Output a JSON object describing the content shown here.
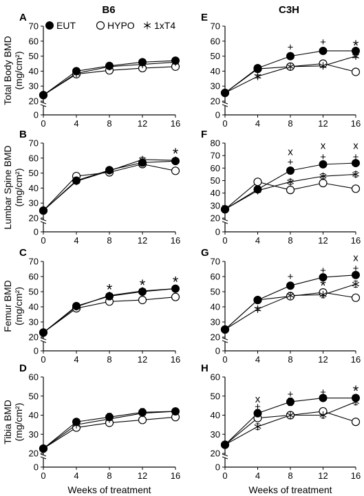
{
  "columns": [
    "B6",
    "C3H"
  ],
  "x_axis_title": "Weeks of treatment",
  "legend": [
    {
      "label": "EUT",
      "marker": "filled-circle"
    },
    {
      "label": "HYPO",
      "marker": "open-circle"
    },
    {
      "label": "1xT4",
      "marker": "asterisk"
    }
  ],
  "colors": {
    "line": "#000000",
    "background": "#ffffff"
  },
  "chart_data": [
    {
      "panel": "A",
      "strain": "B6",
      "type": "line",
      "ylabel_main": "Total Body BMD",
      "ylabel_unit": "(mg/cm²)",
      "xlabel": "",
      "x": [
        0,
        4,
        8,
        12,
        16
      ],
      "xticks": [
        0,
        4,
        8,
        12,
        16
      ],
      "ylim": [
        0,
        70
      ],
      "yticks": [
        0,
        20,
        30,
        40,
        50,
        60,
        70
      ],
      "axis_break": true,
      "series": [
        {
          "name": "EUT",
          "values": [
            24,
            40,
            43.5,
            46,
            47
          ],
          "err": [
            1,
            1,
            1,
            1,
            1
          ]
        },
        {
          "name": "HYPO",
          "values": [
            24,
            38,
            40.5,
            42,
            43
          ],
          "err": [
            1,
            1,
            1,
            1,
            1
          ]
        },
        {
          "name": "1xT4",
          "values": [
            24,
            38.5,
            43,
            44.5,
            46
          ],
          "err": [
            1,
            1,
            1,
            1,
            1
          ]
        }
      ],
      "annotations": []
    },
    {
      "panel": "B",
      "strain": "B6",
      "type": "line",
      "ylabel_main": "Lumbar Spine BMD",
      "ylabel_unit": "(mg/cm²)",
      "xlabel": "",
      "x": [
        0,
        4,
        8,
        12,
        16
      ],
      "xticks": [
        0,
        4,
        8,
        12,
        16
      ],
      "ylim": [
        0,
        70
      ],
      "yticks": [
        0,
        20,
        30,
        40,
        50,
        60,
        70
      ],
      "axis_break": true,
      "series": [
        {
          "name": "EUT",
          "values": [
            25,
            45,
            52,
            57,
            58
          ],
          "err": [
            1,
            1,
            1,
            1.5,
            1.5
          ]
        },
        {
          "name": "HYPO",
          "values": [
            25,
            48,
            50.5,
            56,
            51.5
          ],
          "err": [
            1,
            1,
            1,
            1.5,
            1.5
          ]
        },
        {
          "name": "1xT4",
          "values": [
            25,
            44.5,
            51.5,
            59,
            58.5
          ],
          "err": [
            1,
            1,
            1,
            1.5,
            1.5
          ]
        }
      ],
      "annotations": [
        {
          "x": 16,
          "y": 64,
          "text": "*"
        }
      ]
    },
    {
      "panel": "C",
      "strain": "B6",
      "type": "line",
      "ylabel_main": "Femur BMD",
      "ylabel_unit": "(mg/cm²)",
      "xlabel": "",
      "x": [
        0,
        4,
        8,
        12,
        16
      ],
      "xticks": [
        0,
        4,
        8,
        12,
        16
      ],
      "ylim": [
        0,
        70
      ],
      "yticks": [
        0,
        20,
        30,
        40,
        50,
        60,
        70
      ],
      "axis_break": true,
      "series": [
        {
          "name": "EUT",
          "values": [
            23,
            40.5,
            47,
            50,
            52
          ],
          "err": [
            1,
            1,
            1,
            1,
            1
          ]
        },
        {
          "name": "HYPO",
          "values": [
            23,
            39,
            43.5,
            44.5,
            46.5
          ],
          "err": [
            1,
            1,
            1,
            1,
            1
          ]
        },
        {
          "name": "1xT4",
          "values": [
            23,
            40,
            47.5,
            50.5,
            52
          ],
          "err": [
            1,
            1,
            1,
            1,
            1
          ]
        }
      ],
      "annotations": [
        {
          "x": 8,
          "y": 52.5,
          "text": "*"
        },
        {
          "x": 12,
          "y": 55.5,
          "text": "*"
        },
        {
          "x": 16,
          "y": 57.5,
          "text": "*"
        }
      ]
    },
    {
      "panel": "D",
      "strain": "B6",
      "type": "line",
      "ylabel_main": "Tibia BMD",
      "ylabel_unit": "(mg/cm²)",
      "xlabel": "Weeks of treatment",
      "x": [
        0,
        4,
        8,
        12,
        16
      ],
      "xticks": [
        0,
        4,
        8,
        12,
        16
      ],
      "ylim": [
        0,
        60
      ],
      "yticks": [
        0,
        20,
        30,
        40,
        50,
        60
      ],
      "axis_break": true,
      "series": [
        {
          "name": "EUT",
          "values": [
            22.5,
            36.5,
            39,
            41.5,
            42
          ],
          "err": [
            1,
            1,
            2,
            2,
            1.5
          ]
        },
        {
          "name": "HYPO",
          "values": [
            22.5,
            33.5,
            36,
            37.5,
            39
          ],
          "err": [
            1,
            1,
            1.5,
            1.5,
            1.5
          ]
        },
        {
          "name": "1xT4",
          "values": [
            22.5,
            35,
            38,
            41,
            42
          ],
          "err": [
            1,
            1,
            1.5,
            1.5,
            1.5
          ]
        }
      ],
      "annotations": []
    },
    {
      "panel": "E",
      "strain": "C3H",
      "type": "line",
      "ylabel_main": "",
      "ylabel_unit": "",
      "xlabel": "",
      "x": [
        0,
        4,
        8,
        12,
        16
      ],
      "xticks": [
        0,
        4,
        8,
        12,
        16
      ],
      "ylim": [
        0,
        70
      ],
      "yticks": [
        0,
        20,
        30,
        40,
        50,
        60,
        70
      ],
      "axis_break": true,
      "series": [
        {
          "name": "EUT",
          "values": [
            25.5,
            42,
            50,
            53.5,
            53.5
          ],
          "err": [
            1,
            1,
            1,
            1,
            1
          ]
        },
        {
          "name": "HYPO",
          "values": [
            25.5,
            41.5,
            43,
            45,
            39.5
          ],
          "err": [
            1,
            1,
            1,
            1,
            1
          ]
        },
        {
          "name": "1xT4",
          "values": [
            25.5,
            36.5,
            43,
            43.5,
            50
          ],
          "err": [
            1,
            1,
            1,
            1,
            1
          ]
        }
      ],
      "annotations": [
        {
          "x": 8,
          "y": 56,
          "text": "+"
        },
        {
          "x": 12,
          "y": 59.5,
          "text": "+"
        },
        {
          "x": 16,
          "y": 58,
          "text": "*"
        }
      ]
    },
    {
      "panel": "F",
      "strain": "C3H",
      "type": "line",
      "ylabel_main": "",
      "ylabel_unit": "",
      "xlabel": "",
      "x": [
        0,
        4,
        8,
        12,
        16
      ],
      "xticks": [
        0,
        4,
        8,
        12,
        16
      ],
      "ylim": [
        0,
        80
      ],
      "yticks": [
        0,
        20,
        30,
        40,
        50,
        60,
        70,
        80
      ],
      "axis_break": true,
      "series": [
        {
          "name": "EUT",
          "values": [
            27,
            43,
            58,
            63,
            64
          ],
          "err": [
            1,
            1,
            2,
            2,
            2
          ]
        },
        {
          "name": "HYPO",
          "values": [
            27,
            49,
            42.5,
            48,
            43.5
          ],
          "err": [
            1,
            1,
            2,
            2,
            2
          ]
        },
        {
          "name": "1xT4",
          "values": [
            27,
            42,
            49,
            53.5,
            55
          ],
          "err": [
            1,
            1,
            2,
            2,
            2
          ]
        }
      ],
      "annotations": [
        {
          "x": 8,
          "y": 73,
          "text": "x"
        },
        {
          "x": 8,
          "y": 65,
          "text": "+"
        },
        {
          "x": 12,
          "y": 78,
          "text": "x"
        },
        {
          "x": 12,
          "y": 69,
          "text": "+"
        },
        {
          "x": 16,
          "y": 78,
          "text": "x"
        },
        {
          "x": 16,
          "y": 69,
          "text": "+"
        }
      ]
    },
    {
      "panel": "G",
      "strain": "C3H",
      "type": "line",
      "ylabel_main": "",
      "ylabel_unit": "",
      "xlabel": "",
      "x": [
        0,
        4,
        8,
        12,
        16
      ],
      "xticks": [
        0,
        4,
        8,
        12,
        16
      ],
      "ylim": [
        0,
        70
      ],
      "yticks": [
        0,
        20,
        30,
        40,
        50,
        60,
        70
      ],
      "axis_break": true,
      "series": [
        {
          "name": "EUT",
          "values": [
            25,
            44.5,
            54,
            59.5,
            61
          ],
          "err": [
            1,
            1,
            2,
            2,
            2
          ]
        },
        {
          "name": "HYPO",
          "values": [
            25,
            44.5,
            47,
            49.5,
            46
          ],
          "err": [
            1,
            1,
            2,
            2,
            2
          ]
        },
        {
          "name": "1xT4",
          "values": [
            25,
            38.5,
            47.5,
            48,
            55
          ],
          "err": [
            1,
            1,
            2,
            2,
            2
          ]
        }
      ],
      "annotations": [
        {
          "x": 8,
          "y": 60,
          "text": "+"
        },
        {
          "x": 12,
          "y": 64,
          "text": "+"
        },
        {
          "x": 12,
          "y": 55,
          "text": "*"
        },
        {
          "x": 16,
          "y": 72.5,
          "text": "x"
        },
        {
          "x": 16,
          "y": 65.5,
          "text": "+"
        }
      ]
    },
    {
      "panel": "H",
      "strain": "C3H",
      "type": "line",
      "ylabel_main": "",
      "ylabel_unit": "",
      "xlabel": "Weeks of treatment",
      "x": [
        0,
        4,
        8,
        12,
        16
      ],
      "xticks": [
        0,
        4,
        8,
        12,
        16
      ],
      "ylim": [
        0,
        60
      ],
      "yticks": [
        0,
        20,
        30,
        40,
        50,
        60
      ],
      "axis_break": true,
      "series": [
        {
          "name": "EUT",
          "values": [
            24.5,
            41,
            47,
            49,
            49
          ],
          "err": [
            1,
            2,
            2,
            1.5,
            1.5
          ]
        },
        {
          "name": "HYPO",
          "values": [
            24.5,
            38.5,
            40,
            42,
            36.5
          ],
          "err": [
            1,
            1.5,
            1.5,
            1.5,
            1
          ]
        },
        {
          "name": "1xT4",
          "values": [
            24.5,
            34,
            40,
            40,
            47
          ],
          "err": [
            1,
            1.5,
            1.5,
            1.5,
            1.5
          ]
        }
      ],
      "annotations": [
        {
          "x": 4,
          "y": 48.5,
          "text": "x"
        },
        {
          "x": 4,
          "y": 44.5,
          "text": "+"
        },
        {
          "x": 8,
          "y": 51,
          "text": "+"
        },
        {
          "x": 12,
          "y": 52,
          "text": "+"
        },
        {
          "x": 16,
          "y": 53.5,
          "text": "*"
        }
      ]
    }
  ]
}
